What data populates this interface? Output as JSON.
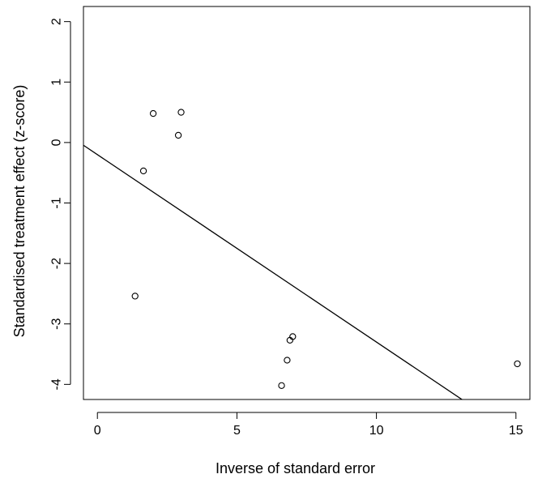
{
  "chart_data": {
    "type": "scatter",
    "title": "",
    "xlabel": "Inverse of standard error",
    "ylabel": "Standardised treatment effect (z-score)",
    "xlim": [
      -0.5,
      15.5
    ],
    "ylim": [
      -4.25,
      2.25
    ],
    "x_ticks": [
      0,
      5,
      10,
      15
    ],
    "y_ticks": [
      -4,
      -3,
      -2,
      -1,
      0,
      1,
      2
    ],
    "x_tick_labels": [
      "0",
      "5",
      "10",
      "15"
    ],
    "y_tick_labels": [
      "-4",
      "-3",
      "-2",
      "-1",
      "0",
      "1",
      "2"
    ],
    "grid": false,
    "legend": "none",
    "points": [
      {
        "x": 1.35,
        "y": -2.54
      },
      {
        "x": 1.65,
        "y": -0.47
      },
      {
        "x": 2.0,
        "y": 0.48
      },
      {
        "x": 2.9,
        "y": 0.12
      },
      {
        "x": 3.0,
        "y": 0.5
      },
      {
        "x": 6.6,
        "y": -4.02
      },
      {
        "x": 6.8,
        "y": -3.6
      },
      {
        "x": 6.9,
        "y": -3.27
      },
      {
        "x": 7.0,
        "y": -3.21
      },
      {
        "x": 15.05,
        "y": -3.66
      }
    ],
    "regression_line": {
      "intercept": -0.2,
      "slope": -0.31
    },
    "colors": {
      "points": "#000000",
      "line": "#000000",
      "background": "#ffffff"
    }
  }
}
